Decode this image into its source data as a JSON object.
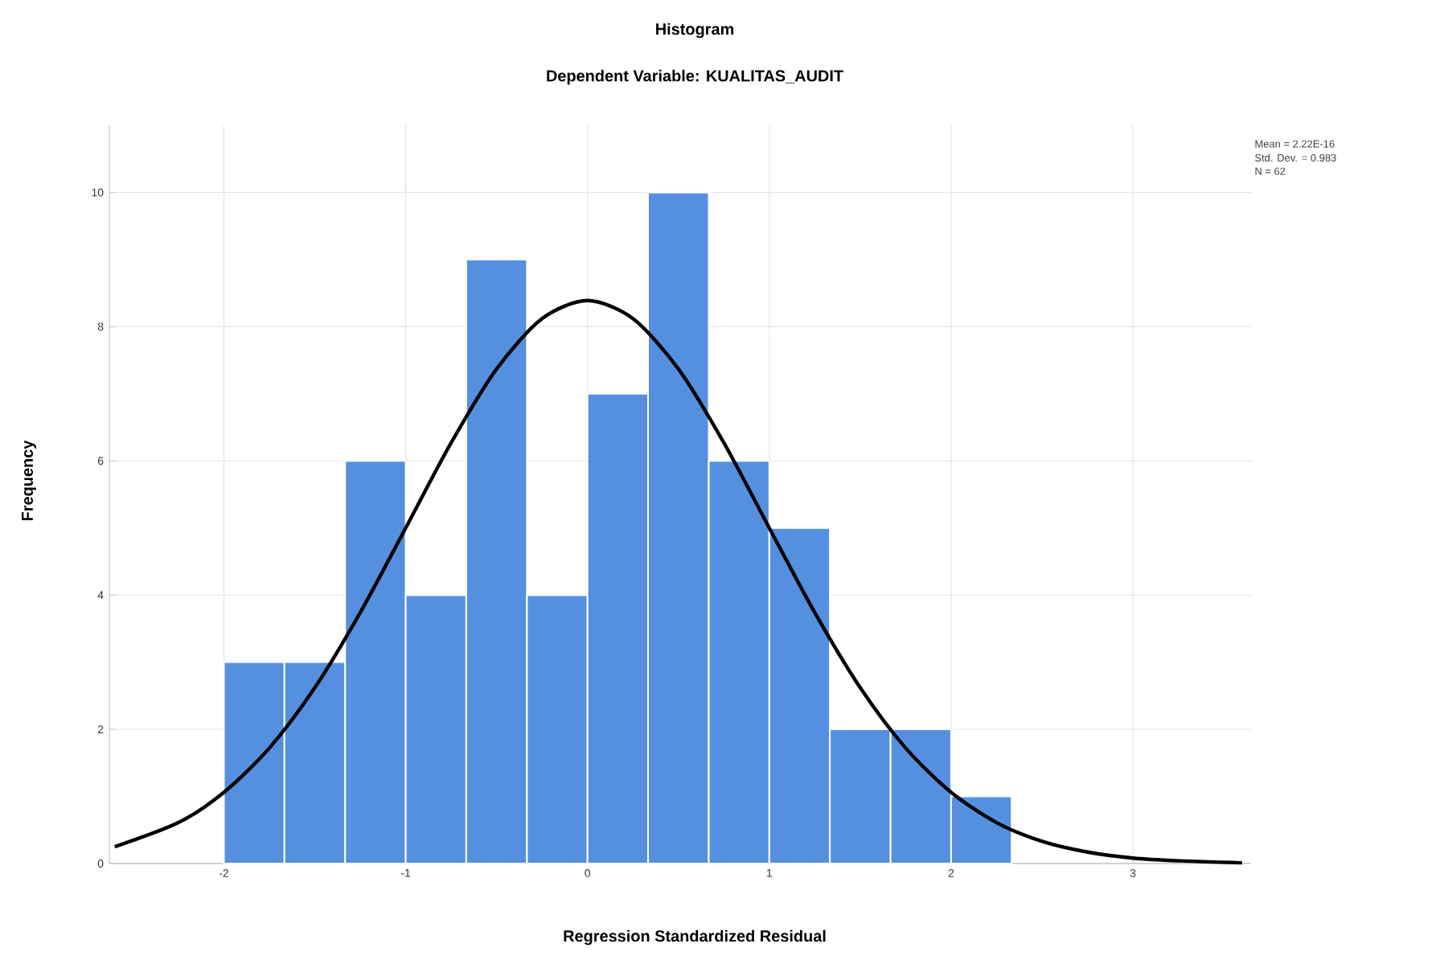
{
  "chart_data": {
    "type": "histogram",
    "title": "Histogram",
    "subtitle": "Dependent Variable: KUALITAS_AUDIT",
    "xlabel": "Regression Standardized Residual",
    "ylabel": "Frequency",
    "bins": [
      -2,
      -1.667,
      -1.333,
      -1,
      -0.667,
      -0.333,
      0,
      0.333,
      0.667,
      1,
      1.333,
      1.667,
      2,
      2.333
    ],
    "values": [
      3,
      3,
      6,
      4,
      9,
      4,
      7,
      10,
      6,
      5,
      2,
      2,
      1
    ],
    "color": "#5590e0",
    "series": [
      {
        "type": "line",
        "color": "#000000",
        "x": [
          -2.6,
          -2.25,
          -2,
          -1.75,
          -1.5,
          -1.25,
          -1,
          -0.75,
          -0.5,
          -0.25,
          0,
          0.25,
          0.5,
          0.75,
          1,
          1.25,
          1.5,
          1.75,
          2,
          2.25,
          2.5,
          2.75,
          3,
          3.25,
          3.6
        ],
        "values": [
          0.25,
          0.61,
          1.06,
          1.72,
          2.62,
          3.74,
          5.0,
          6.27,
          7.37,
          8.12,
          8.39,
          8.12,
          7.37,
          6.27,
          5.0,
          3.74,
          2.62,
          1.72,
          1.06,
          0.61,
          0.33,
          0.17,
          0.08,
          0.04,
          0.01
        ]
      }
    ],
    "xlim": [
      -2.63,
      3.65
    ],
    "ylim": [
      0,
      11
    ],
    "xticks": [
      -2,
      -1,
      0,
      1,
      2,
      3
    ],
    "yticks": [
      0,
      2,
      4,
      6,
      8,
      10
    ],
    "grid": true,
    "annotations": [
      "Mean = 2.22E-16",
      "Std. Dev. = 0.983",
      "N = 62"
    ]
  }
}
